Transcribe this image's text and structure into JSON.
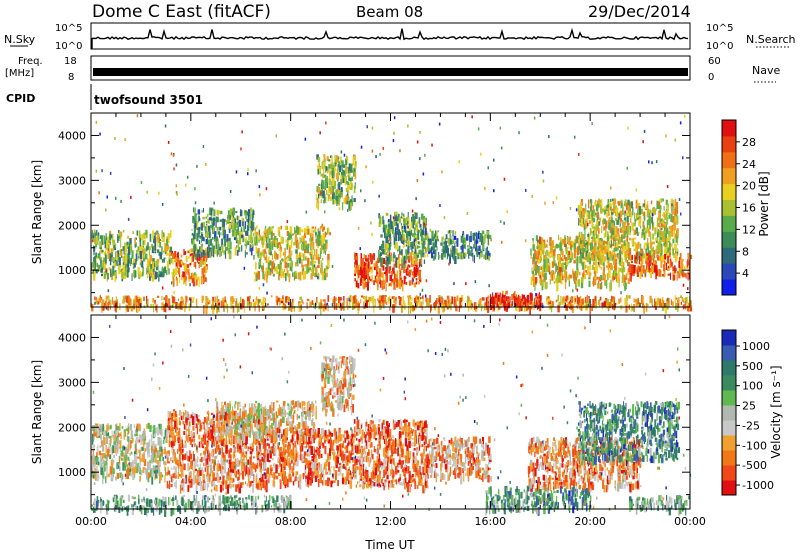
{
  "header": {
    "station": "Dome C East (fitACF)",
    "beam": "Beam 08",
    "date": "29/Dec/2014"
  },
  "strip": {
    "nsky_label": "N.Sky",
    "nsky_ticks": [
      "10^5",
      "10^0"
    ],
    "nsearch_label": "N.Search",
    "nsearch_ticks": [
      "10^5",
      "10^0"
    ],
    "freq_label": "Freq.",
    "freq_unit": "[MHz]",
    "freq_ticks": [
      "18",
      "8"
    ],
    "nave_label": "Nave",
    "nave_ticks": [
      "60",
      "0"
    ],
    "cpid_label": "CPID",
    "cpid_value": "twofsound 3501"
  },
  "colors": {
    "power": [
      "#1020e8",
      "#2a48b8",
      "#2e6a7a",
      "#3c8c5a",
      "#5aac4a",
      "#a8c032",
      "#e8d020",
      "#f0a020",
      "#f07018",
      "#e84010",
      "#e01010"
    ],
    "velocity": [
      "#e01010",
      "#f04818",
      "#f07818",
      "#f0a030",
      "#c8c8c8",
      "#b0b8b0",
      "#60b850",
      "#3a8c60",
      "#2e7a6a",
      "#3a5cb0",
      "#1a2ab8"
    ]
  },
  "chart_data": [
    {
      "type": "heatmap",
      "name": "power",
      "xlabel": "",
      "ylabel": "Slant Range [km]",
      "xlim": [
        0,
        24
      ],
      "ylim": [
        180,
        4500
      ],
      "x_ticks": [
        0,
        4,
        8,
        12,
        16,
        20,
        24
      ],
      "y_ticks": [
        "4000",
        "3000",
        "2000",
        "1000"
      ],
      "colorbar": {
        "label": "Power [dB]",
        "range": [
          0,
          32
        ],
        "ticks": [
          "28",
          "24",
          "20",
          "16",
          "12",
          "8",
          "4"
        ]
      },
      "echo_regions": [
        {
          "t": [
            0.0,
            3.2
          ],
          "r": [
            900,
            1900
          ],
          "level": 0.45
        },
        {
          "t": [
            3.2,
            4.6
          ],
          "r": [
            800,
            1500
          ],
          "level": 0.75
        },
        {
          "t": [
            4.0,
            6.5
          ],
          "r": [
            1400,
            2400
          ],
          "level": 0.35
        },
        {
          "t": [
            6.5,
            9.5
          ],
          "r": [
            900,
            2000
          ],
          "level": 0.55
        },
        {
          "t": [
            9.0,
            10.6
          ],
          "r": [
            2500,
            3600
          ],
          "level": 0.45
        },
        {
          "t": [
            10.5,
            13.2
          ],
          "r": [
            700,
            1400
          ],
          "level": 0.85
        },
        {
          "t": [
            11.5,
            13.5
          ],
          "r": [
            1200,
            2300
          ],
          "level": 0.4
        },
        {
          "t": [
            13.5,
            16.0
          ],
          "r": [
            1300,
            1900
          ],
          "level": 0.3
        },
        {
          "t": [
            0.0,
            24.0
          ],
          "r": [
            200,
            450
          ],
          "level": 0.7
        },
        {
          "t": [
            15.8,
            18.0
          ],
          "r": [
            200,
            550
          ],
          "level": 0.95
        },
        {
          "t": [
            17.6,
            21.5
          ],
          "r": [
            700,
            1800
          ],
          "level": 0.6
        },
        {
          "t": [
            19.5,
            23.5
          ],
          "r": [
            1300,
            2600
          ],
          "level": 0.55
        },
        {
          "t": [
            21.5,
            24.0
          ],
          "r": [
            900,
            1400
          ],
          "level": 0.8
        }
      ]
    },
    {
      "type": "heatmap",
      "name": "velocity",
      "xlabel": "Time UT",
      "ylabel": "Slant Range [km]",
      "xlim": [
        0,
        24
      ],
      "ylim": [
        180,
        4500
      ],
      "x_ticks": [
        "00:00",
        "04:00",
        "08:00",
        "12:00",
        "16:00",
        "20:00",
        "00:00"
      ],
      "y_ticks": [
        "4000",
        "3000",
        "2000",
        "1000"
      ],
      "colorbar": {
        "label": "Velocity [m s⁻¹]",
        "ticks": [
          "1000",
          "500",
          "100",
          "25",
          "-25",
          "-100",
          "-500",
          "-1000"
        ]
      },
      "echo_regions": [
        {
          "t": [
            0.0,
            3.0
          ],
          "r": [
            900,
            2100
          ],
          "level": 0.45
        },
        {
          "t": [
            3.0,
            7.0
          ],
          "r": [
            700,
            2400
          ],
          "level": 0.25
        },
        {
          "t": [
            5.0,
            9.0
          ],
          "r": [
            1800,
            2600
          ],
          "level": 0.4
        },
        {
          "t": [
            7.0,
            10.5
          ],
          "r": [
            800,
            2000
          ],
          "level": 0.2
        },
        {
          "t": [
            9.2,
            10.5
          ],
          "r": [
            2400,
            3600
          ],
          "level": 0.35
        },
        {
          "t": [
            10.5,
            13.5
          ],
          "r": [
            700,
            2200
          ],
          "level": 0.22
        },
        {
          "t": [
            13.5,
            16.0
          ],
          "r": [
            900,
            1800
          ],
          "level": 0.3
        },
        {
          "t": [
            0.0,
            8.0
          ],
          "r": [
            200,
            500
          ],
          "level": 0.6
        },
        {
          "t": [
            15.8,
            20.0
          ],
          "r": [
            200,
            700
          ],
          "level": 0.7
        },
        {
          "t": [
            17.5,
            22.0
          ],
          "r": [
            700,
            1800
          ],
          "level": 0.28
        },
        {
          "t": [
            19.5,
            23.5
          ],
          "r": [
            1300,
            2600
          ],
          "level": 0.72
        },
        {
          "t": [
            21.5,
            24.0
          ],
          "r": [
            200,
            500
          ],
          "level": 0.6
        }
      ]
    }
  ]
}
